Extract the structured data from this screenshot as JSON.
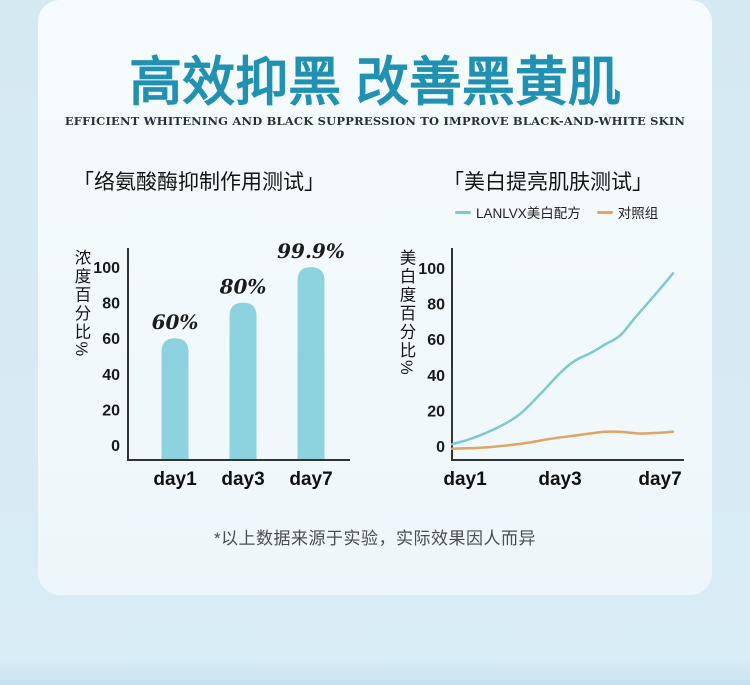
{
  "header": {
    "title": "高效抑黑 改善黑黄肌",
    "subtitle": "EFFICIENT WHITENING AND BLACK SUPPRESSION TO IMPROVE BLACK-AND-WHITE SKIN"
  },
  "footnote": {
    "text": "*以上数据来源于实验，实际效果因人而异"
  },
  "colors": {
    "accent_teal": "#2191b2",
    "bar_fill": "#8dd3df",
    "line_teal": "#7cc9d6",
    "line_orange": "#e0a463",
    "axis": "#333333",
    "tick_text": "#1a1a1a",
    "card_bg": "#f4fafd",
    "page_bg": "#d7eaf4"
  },
  "chart_data": [
    {
      "type": "bar",
      "title": "「络氨酸酶抑制作用测试」",
      "ylabel": "浓度百分比%",
      "xlabel": "",
      "categories": [
        "day1",
        "day3",
        "day7"
      ],
      "values": [
        60,
        80,
        99.9
      ],
      "value_labels": [
        "60%",
        "80%",
        "99.9%"
      ],
      "yticks": [
        0,
        20,
        40,
        60,
        80,
        100
      ],
      "ylim": [
        0,
        100
      ],
      "grid": false,
      "bar_color": "#8dd3df"
    },
    {
      "type": "line",
      "title": "「美白提亮肌肤测试」",
      "ylabel": "美白度百分比%",
      "xlabel": "",
      "xticklabels": [
        "day1",
        "day3",
        "day7"
      ],
      "yticks": [
        0,
        20,
        40,
        60,
        80,
        100
      ],
      "ylim": [
        0,
        100
      ],
      "grid": false,
      "legend_position": "top",
      "legend": [
        {
          "label": "LANLVX美白配方",
          "color": "#7cc9d6"
        },
        {
          "label": "对照组",
          "color": "#e0a463"
        }
      ],
      "series": [
        {
          "name": "LANLVX美白配方",
          "color": "#7cc9d6",
          "points": [
            [
              0,
              1
            ],
            [
              0.059,
              3
            ],
            [
              0.127,
              6
            ],
            [
              0.217,
              11
            ],
            [
              0.308,
              18
            ],
            [
              0.398,
              29
            ],
            [
              0.489,
              41
            ],
            [
              0.557,
              48
            ],
            [
              0.624,
              52
            ],
            [
              0.692,
              57
            ],
            [
              0.76,
              62
            ],
            [
              0.828,
              72
            ],
            [
              0.919,
              85
            ],
            [
              1.0,
              97
            ]
          ]
        },
        {
          "name": "对照组",
          "color": "#e0a463",
          "points": [
            [
              0,
              -1.5
            ],
            [
              0.127,
              -1
            ],
            [
              0.262,
              0.5
            ],
            [
              0.353,
              2
            ],
            [
              0.443,
              4
            ],
            [
              0.534,
              5.5
            ],
            [
              0.624,
              7
            ],
            [
              0.692,
              8
            ],
            [
              0.76,
              8
            ],
            [
              0.851,
              7
            ],
            [
              0.941,
              7.5
            ],
            [
              1.0,
              8
            ]
          ]
        }
      ]
    }
  ]
}
